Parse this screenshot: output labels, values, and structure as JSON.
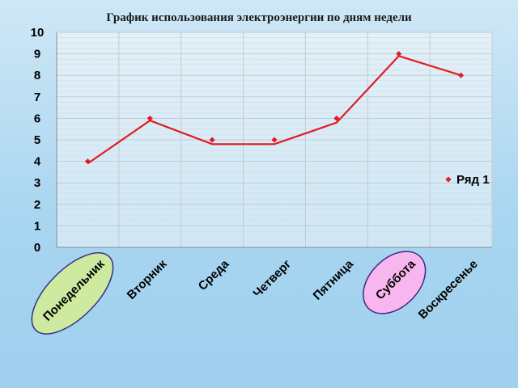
{
  "chart_data": {
    "type": "line",
    "title": "График использования электроэнергии по дням недели",
    "categories": [
      "Понедельник",
      "Вторник",
      "Среда",
      "Четверг",
      "Пятница",
      "Суббота",
      "Воскресенье"
    ],
    "series": [
      {
        "name": "Ряд 1",
        "values": [
          4,
          6,
          5,
          5,
          6,
          9,
          8
        ],
        "line_values": [
          3.9,
          5.9,
          4.8,
          4.8,
          5.8,
          8.9,
          8.0
        ],
        "color": "#e01b24"
      }
    ],
    "ylim": [
      0,
      10
    ],
    "yticks": [
      0,
      1,
      2,
      3,
      4,
      5,
      6,
      7,
      8,
      9,
      10
    ],
    "grid": true,
    "legend": "right",
    "highlighted_categories": [
      {
        "label": "Понедельник",
        "fill": "#cdeaa0"
      },
      {
        "label": "Суббота",
        "fill": "#f7b6ee"
      }
    ],
    "highlight_stroke": "#3b2c86"
  }
}
